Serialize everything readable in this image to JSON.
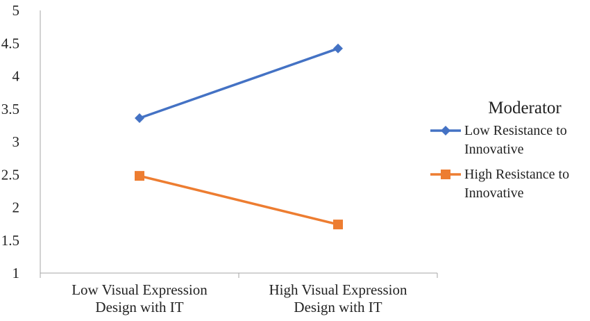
{
  "chart_data": {
    "type": "line",
    "categories": [
      [
        "Low Visual Expression",
        "Design with IT"
      ],
      [
        "High Visual Expression",
        "Design with IT"
      ]
    ],
    "ylim": [
      1,
      5
    ],
    "yticks": [
      "1",
      "1.5",
      "2",
      "2.5",
      "3",
      "3.5",
      "4",
      "4.5",
      "5"
    ],
    "grid": false,
    "legend": {
      "title": "Moderator",
      "placement": "right"
    },
    "series": [
      {
        "name": [
          "Low Resistance to",
          "Innovative"
        ],
        "values": [
          3.36,
          4.42
        ],
        "color": "#4472C4",
        "marker": "diamond"
      },
      {
        "name": [
          "High Resistance to",
          "Innovative"
        ],
        "values": [
          2.48,
          1.74
        ],
        "color": "#ED7D31",
        "marker": "square"
      }
    ]
  }
}
